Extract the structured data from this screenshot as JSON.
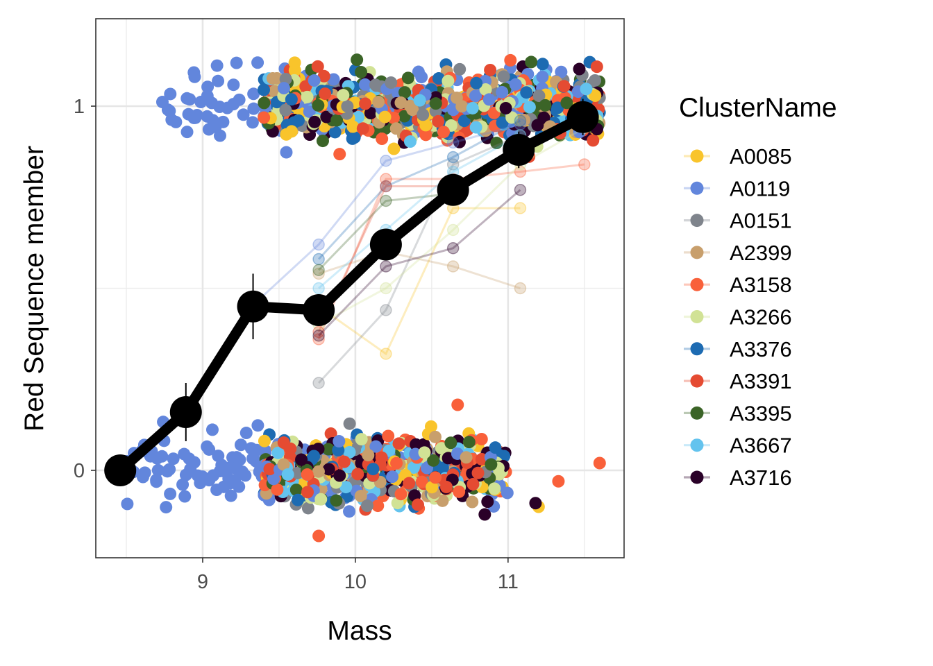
{
  "chart_data": {
    "type": "scatter",
    "xlabel": "Mass",
    "ylabel": "Red Sequence member",
    "xlim": [
      8.3,
      11.76
    ],
    "ylim": [
      -0.24,
      1.24
    ],
    "x_ticks": [
      9,
      10,
      11
    ],
    "x_tick_labels": [
      "9",
      "10",
      "11"
    ],
    "y_ticks": [
      0,
      1
    ],
    "y_tick_labels": [
      "0",
      "1"
    ],
    "y_minor_gridlines": [
      0.5
    ],
    "x_minor_gridlines": [
      8.5,
      9.5,
      10.5,
      11.5
    ],
    "grid": true,
    "legend_position": "right",
    "legend_title": "ClusterName",
    "series": [
      {
        "name": "A0085",
        "color": "#F9C42B",
        "binned": [
          [
            9.76,
            0.45
          ],
          [
            10.2,
            0.32
          ],
          [
            10.64,
            0.72
          ],
          [
            11.08,
            0.72
          ]
        ]
      },
      {
        "name": "A0119",
        "color": "#6286DC",
        "binned": [
          [
            9.32,
            0.45
          ],
          [
            9.76,
            0.62
          ],
          [
            10.2,
            0.85
          ],
          [
            10.64,
            0.9
          ],
          [
            11.08,
            0.95
          ]
        ]
      },
      {
        "name": "A0151",
        "color": "#7F848C",
        "binned": [
          [
            9.76,
            0.24
          ],
          [
            10.2,
            0.44
          ],
          [
            10.64,
            0.84
          ],
          [
            11.08,
            0.92
          ]
        ]
      },
      {
        "name": "A2399",
        "color": "#C89F6C",
        "binned": [
          [
            9.76,
            0.54
          ],
          [
            10.2,
            0.6
          ],
          [
            10.64,
            0.56
          ],
          [
            11.08,
            0.5
          ]
        ]
      },
      {
        "name": "A3158",
        "color": "#F9603A",
        "binned": [
          [
            9.76,
            0.36
          ],
          [
            10.2,
            0.8
          ],
          [
            10.64,
            0.8
          ],
          [
            11.08,
            0.82
          ],
          [
            11.5,
            0.84
          ]
        ]
      },
      {
        "name": "A3266",
        "color": "#D1E295",
        "binned": [
          [
            9.76,
            0.4
          ],
          [
            10.2,
            0.5
          ],
          [
            10.64,
            0.66
          ],
          [
            11.08,
            0.84
          ],
          [
            11.5,
            0.94
          ]
        ]
      },
      {
        "name": "A3376",
        "color": "#1D6BB2",
        "binned": [
          [
            9.76,
            0.58
          ],
          [
            10.2,
            0.78
          ],
          [
            10.64,
            0.86
          ],
          [
            11.08,
            0.96
          ]
        ]
      },
      {
        "name": "A3391",
        "color": "#E54B32",
        "binned": [
          [
            9.76,
            0.38
          ],
          [
            10.2,
            0.78
          ],
          [
            10.64,
            0.78
          ],
          [
            11.08,
            0.88
          ]
        ]
      },
      {
        "name": "A3395",
        "color": "#3B6427",
        "binned": [
          [
            9.76,
            0.55
          ],
          [
            10.2,
            0.74
          ],
          [
            10.64,
            0.76
          ],
          [
            11.08,
            0.9
          ]
        ]
      },
      {
        "name": "A3667",
        "color": "#63C3EE",
        "binned": [
          [
            9.76,
            0.5
          ],
          [
            10.2,
            0.66
          ],
          [
            10.64,
            0.82
          ],
          [
            11.08,
            0.92
          ]
        ]
      },
      {
        "name": "A3716",
        "color": "#2A0128",
        "binned": [
          [
            9.76,
            0.37
          ],
          [
            10.2,
            0.56
          ],
          [
            10.64,
            0.61
          ],
          [
            11.08,
            0.77
          ]
        ]
      }
    ],
    "overall": {
      "x": [
        8.46,
        8.89,
        9.33,
        9.76,
        10.2,
        10.64,
        11.07,
        11.49
      ],
      "y": [
        0.0,
        0.16,
        0.45,
        0.44,
        0.62,
        0.77,
        0.88,
        0.97
      ],
      "err": [
        0.0,
        0.08,
        0.09,
        0.0,
        0.0,
        0.0,
        0.05,
        0.05
      ]
    },
    "scatter_summary": {
      "upper_band": {
        "y_center": 1.0,
        "x_range_all": [
          9.4,
          11.6
        ],
        "x_range_A0119": [
          8.7,
          9.8
        ]
      },
      "lower_band": {
        "y_center": 0.0,
        "x_range_all": [
          9.4,
          11.3
        ],
        "x_range_A0119": [
          8.5,
          10.1
        ]
      },
      "outliers": [
        {
          "series": "A3158",
          "x": 10.67,
          "y": 0.18
        },
        {
          "series": "A3158",
          "x": 11.6,
          "y": 0.02
        },
        {
          "series": "A3158",
          "x": 11.33,
          "y": -0.03
        },
        {
          "series": "A3158",
          "x": 9.76,
          "y": -0.18
        },
        {
          "series": "A0085",
          "x": 11.2,
          "y": -0.1
        },
        {
          "series": "A3716",
          "x": 11.18,
          "y": -0.09
        }
      ]
    }
  }
}
